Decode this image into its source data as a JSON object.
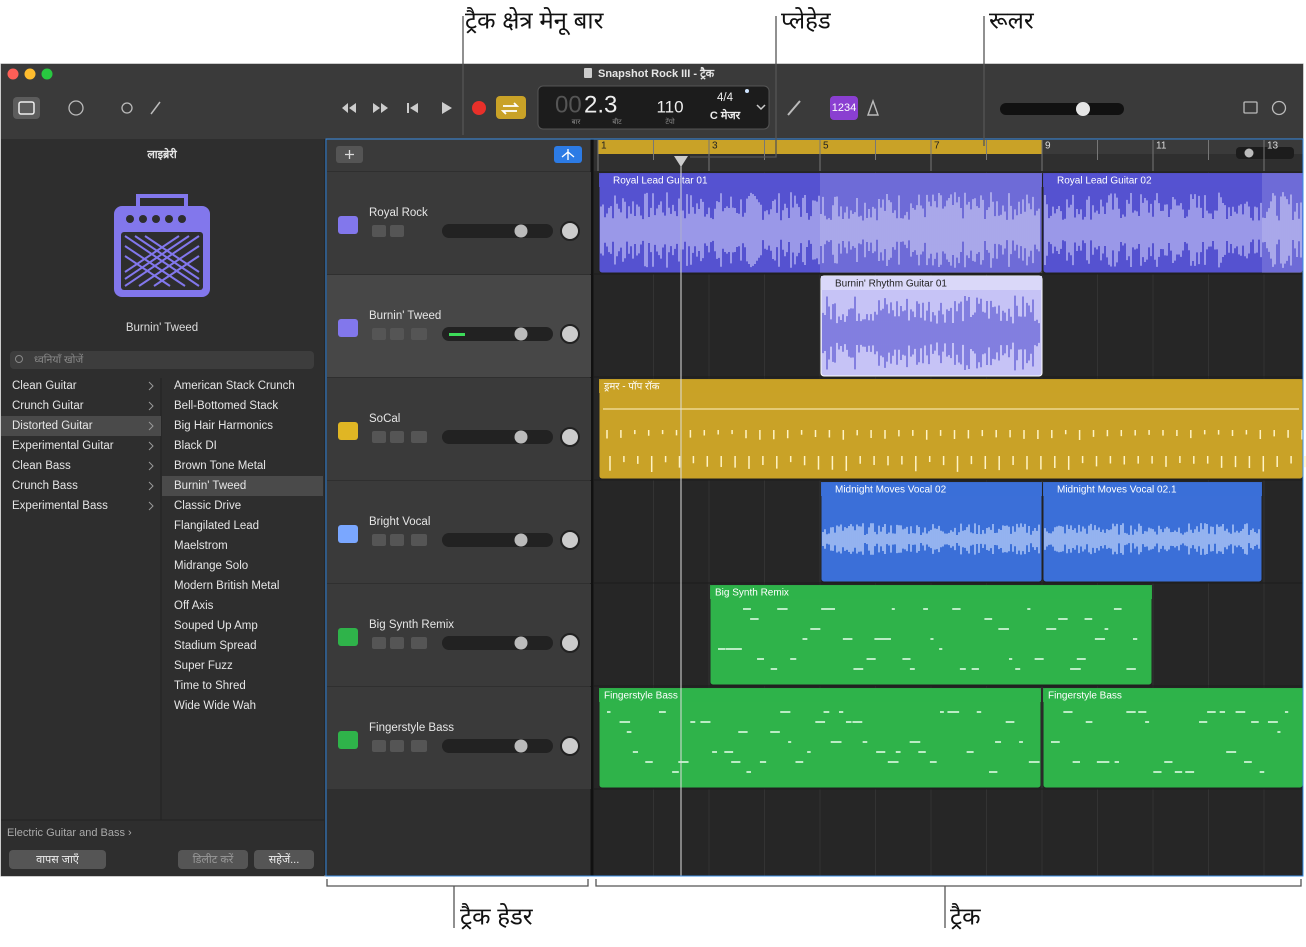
{
  "callouts": {
    "track_area_menu_bar": "ट्रैक क्षेत्र मेनू बार",
    "playhead": "प्लेहेड",
    "ruler": "रूलर",
    "track_header": "ट्रैक हेडर",
    "tracks": "ट्रैक"
  },
  "window": {
    "title": "Snapshot Rock III - ट्रैक"
  },
  "lcd": {
    "bar_dim": "00",
    "position": "2.3",
    "bar_label": "बार",
    "beat_label": "बीट",
    "tempo": "110",
    "tempo_label": "टेंपो",
    "time_signature": "4/4",
    "key": "C मेजर"
  },
  "count_in": "1234",
  "library": {
    "title": "लाइब्रेरी",
    "patch_name": "Burnin' Tweed",
    "search_placeholder": "ध्वनियाँ खोजें",
    "categories": [
      "Clean Guitar",
      "Crunch Guitar",
      "Distorted Guitar",
      "Experimental Guitar",
      "Clean Bass",
      "Crunch Bass",
      "Experimental Bass"
    ],
    "patches": [
      "American Stack Crunch",
      "Bell-Bottomed Stack",
      "Big Hair Harmonics",
      "Black DI",
      "Brown Tone Metal",
      "Burnin' Tweed",
      "Classic Drive",
      "Flangilated Lead",
      "Maelstrom",
      "Midrange Solo",
      "Modern British Metal",
      "Off Axis",
      "Souped Up Amp",
      "Stadium Spread",
      "Super Fuzz",
      "Time to Shred",
      "Wide Wide Wah"
    ],
    "footer_path": "Electric Guitar and Bass ›",
    "buttons": [
      "वापस जाएँ",
      "डिलीट करें",
      "सहेजें..."
    ]
  },
  "ruler": {
    "bars": [
      "1",
      "3",
      "5",
      "7",
      "9",
      "11",
      "13"
    ]
  },
  "tracks": [
    {
      "name": "Royal Rock",
      "regions": [
        "Royal Lead Guitar 01",
        "Royal Lead Guitar 02"
      ]
    },
    {
      "name": "Burnin' Tweed",
      "regions": [
        "Burnin' Rhythm Guitar 01"
      ]
    },
    {
      "name": "SoCal",
      "regions": [
        "ड्रमर - पॉप रॉक"
      ]
    },
    {
      "name": "Bright Vocal",
      "regions": [
        "Midnight Moves Vocal 02",
        "Midnight Moves Vocal 02.1"
      ]
    },
    {
      "name": "Big Synth Remix",
      "regions": [
        "Big Synth Remix"
      ]
    },
    {
      "name": "Fingerstyle Bass",
      "regions": [
        "Fingerstyle Bass",
        "Fingerstyle Bass"
      ]
    }
  ]
}
